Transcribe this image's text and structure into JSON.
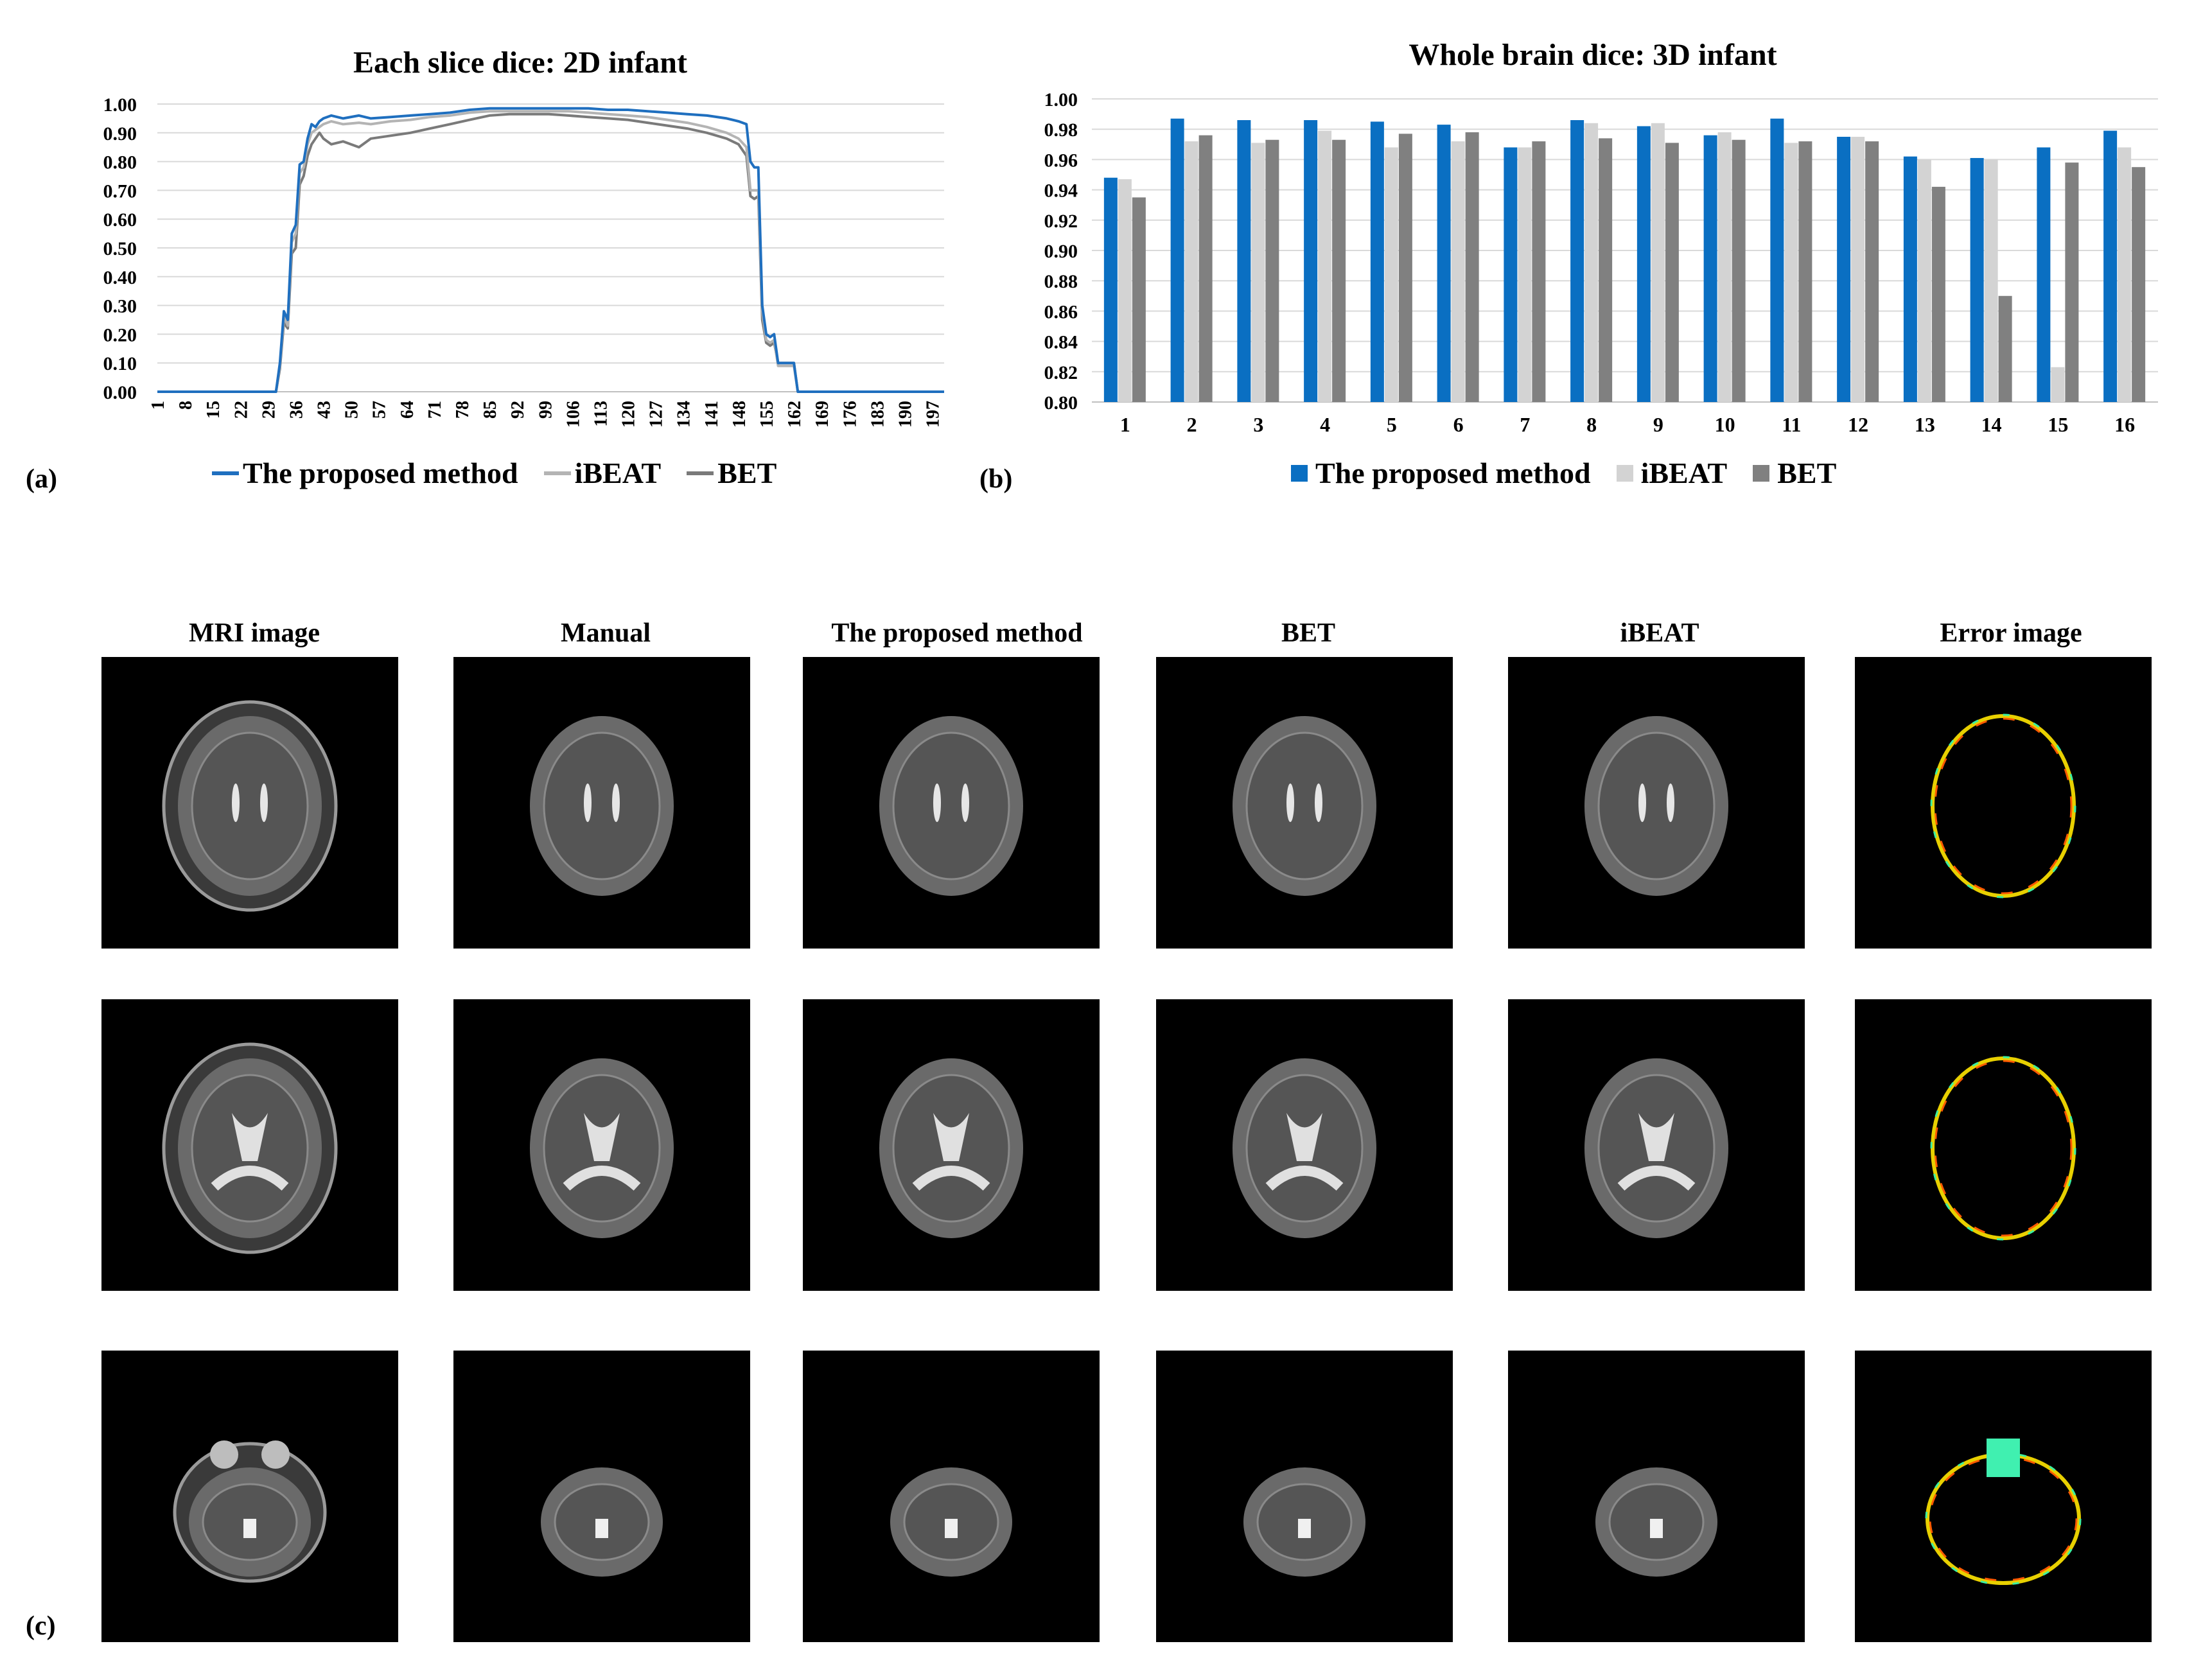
{
  "panels": {
    "a": {
      "label": "(a)",
      "title": "Each slice dice: 2D infant",
      "legend": [
        {
          "label": "The proposed method",
          "color": "#1f6fbf"
        },
        {
          "label": "iBEAT",
          "color": "#b4b4b4"
        },
        {
          "label": "BET",
          "color": "#7a7a7a"
        }
      ]
    },
    "b": {
      "label": "(b)",
      "title": "Whole brain dice: 3D infant",
      "legend": [
        {
          "label": "The proposed method",
          "color": "#0a6fc2"
        },
        {
          "label": "iBEAT",
          "color": "#d3d3d3"
        },
        {
          "label": "BET",
          "color": "#808080"
        }
      ]
    },
    "c": {
      "label": "(c)",
      "columns": [
        "MRI image",
        "Manual",
        "The proposed method",
        "BET",
        "iBEAT",
        "Error image"
      ]
    }
  },
  "chart_data": [
    {
      "type": "line",
      "title": "Each slice dice: 2D infant",
      "xlabel": "",
      "ylabel": "",
      "ylim": [
        0,
        1
      ],
      "yticks": [
        "0.00",
        "0.10",
        "0.20",
        "0.30",
        "0.40",
        "0.50",
        "0.60",
        "0.70",
        "0.80",
        "0.90",
        "1.00"
      ],
      "xticks": [
        "1",
        "8",
        "15",
        "22",
        "29",
        "36",
        "43",
        "50",
        "57",
        "64",
        "71",
        "78",
        "85",
        "92",
        "99",
        "106",
        "113",
        "120",
        "127",
        "134",
        "141",
        "148",
        "155",
        "162",
        "169",
        "176",
        "183",
        "190",
        "197"
      ],
      "xrange": [
        1,
        200
      ],
      "grid": "horizontal",
      "legend_position": "bottom",
      "series": [
        {
          "name": "The proposed method",
          "x": [
            1,
            31,
            32,
            33,
            34,
            35,
            36,
            37,
            38,
            39,
            40,
            41,
            42,
            43,
            45,
            48,
            52,
            55,
            60,
            65,
            70,
            75,
            80,
            85,
            90,
            95,
            100,
            105,
            110,
            115,
            120,
            125,
            130,
            135,
            140,
            145,
            148,
            150,
            151,
            152,
            153,
            154,
            155,
            156,
            157,
            158,
            159,
            160,
            161,
            162,
            163,
            164,
            200
          ],
          "y": [
            0.0,
            0.0,
            0.1,
            0.28,
            0.25,
            0.55,
            0.58,
            0.79,
            0.8,
            0.88,
            0.93,
            0.92,
            0.94,
            0.95,
            0.96,
            0.95,
            0.96,
            0.95,
            0.955,
            0.96,
            0.965,
            0.97,
            0.98,
            0.985,
            0.985,
            0.985,
            0.985,
            0.985,
            0.985,
            0.98,
            0.98,
            0.975,
            0.97,
            0.965,
            0.96,
            0.95,
            0.94,
            0.93,
            0.8,
            0.78,
            0.78,
            0.3,
            0.2,
            0.19,
            0.2,
            0.1,
            0.1,
            0.1,
            0.1,
            0.1,
            0.0,
            0.0,
            0.0
          ]
        },
        {
          "name": "iBEAT",
          "x": [
            1,
            31,
            32,
            33,
            34,
            35,
            36,
            37,
            38,
            39,
            40,
            41,
            42,
            43,
            45,
            48,
            52,
            55,
            60,
            65,
            70,
            75,
            80,
            85,
            90,
            95,
            100,
            105,
            110,
            115,
            120,
            125,
            130,
            135,
            140,
            145,
            148,
            150,
            151,
            152,
            153,
            154,
            155,
            156,
            157,
            158,
            159,
            160,
            161,
            162,
            163,
            164,
            200
          ],
          "y": [
            0.0,
            0.0,
            0.09,
            0.26,
            0.23,
            0.52,
            0.55,
            0.76,
            0.78,
            0.86,
            0.9,
            0.91,
            0.92,
            0.93,
            0.94,
            0.93,
            0.935,
            0.93,
            0.94,
            0.945,
            0.955,
            0.96,
            0.97,
            0.975,
            0.975,
            0.975,
            0.975,
            0.975,
            0.97,
            0.965,
            0.96,
            0.955,
            0.945,
            0.935,
            0.92,
            0.9,
            0.88,
            0.85,
            0.7,
            0.7,
            0.7,
            0.28,
            0.18,
            0.17,
            0.18,
            0.09,
            0.09,
            0.09,
            0.09,
            0.09,
            0.0,
            0.0,
            0.0
          ]
        },
        {
          "name": "BET",
          "x": [
            1,
            31,
            32,
            33,
            34,
            35,
            36,
            37,
            38,
            39,
            40,
            41,
            42,
            43,
            45,
            48,
            52,
            55,
            60,
            65,
            70,
            75,
            80,
            85,
            90,
            95,
            100,
            105,
            110,
            115,
            120,
            125,
            130,
            135,
            140,
            145,
            148,
            150,
            151,
            152,
            153,
            154,
            155,
            156,
            157,
            158,
            159,
            160,
            161,
            162,
            163,
            164,
            200
          ],
          "y": [
            0.0,
            0.0,
            0.08,
            0.24,
            0.22,
            0.48,
            0.5,
            0.72,
            0.75,
            0.82,
            0.86,
            0.88,
            0.9,
            0.88,
            0.86,
            0.87,
            0.85,
            0.88,
            0.89,
            0.9,
            0.915,
            0.93,
            0.945,
            0.96,
            0.965,
            0.965,
            0.965,
            0.96,
            0.955,
            0.95,
            0.945,
            0.935,
            0.925,
            0.915,
            0.9,
            0.88,
            0.86,
            0.82,
            0.68,
            0.67,
            0.68,
            0.25,
            0.17,
            0.16,
            0.17,
            0.1,
            0.1,
            0.1,
            0.1,
            0.1,
            0.0,
            0.0,
            0.0
          ]
        }
      ]
    },
    {
      "type": "bar",
      "title": "Whole brain dice: 3D infant",
      "xlabel": "",
      "ylabel": "",
      "ylim": [
        0.8,
        1.0
      ],
      "yticks": [
        "0.80",
        "0.82",
        "0.84",
        "0.86",
        "0.88",
        "0.90",
        "0.92",
        "0.94",
        "0.96",
        "0.98",
        "1.00"
      ],
      "categories": [
        "1",
        "2",
        "3",
        "4",
        "5",
        "6",
        "7",
        "8",
        "9",
        "10",
        "11",
        "12",
        "13",
        "14",
        "15",
        "16"
      ],
      "grid": "horizontal",
      "legend_position": "bottom",
      "series": [
        {
          "name": "The proposed method",
          "values": [
            0.948,
            0.987,
            0.986,
            0.986,
            0.985,
            0.983,
            0.968,
            0.986,
            0.982,
            0.976,
            0.987,
            0.975,
            0.962,
            0.961,
            0.968,
            0.979
          ]
        },
        {
          "name": "iBEAT",
          "values": [
            0.947,
            0.972,
            0.971,
            0.979,
            0.968,
            0.972,
            0.968,
            0.984,
            0.984,
            0.978,
            0.971,
            0.975,
            0.96,
            0.96,
            0.823,
            0.968
          ]
        },
        {
          "name": "BET",
          "values": [
            0.935,
            0.976,
            0.973,
            0.973,
            0.977,
            0.978,
            0.972,
            0.974,
            0.971,
            0.973,
            0.972,
            0.972,
            0.942,
            0.87,
            0.958,
            0.955
          ]
        }
      ]
    }
  ]
}
